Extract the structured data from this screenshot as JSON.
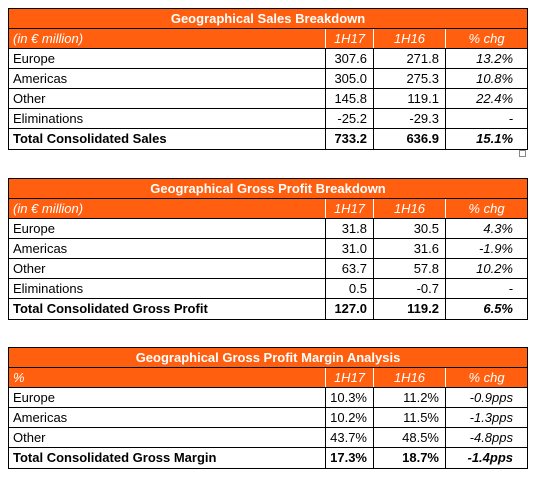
{
  "tables": [
    {
      "title": "Geographical Sales Breakdown",
      "header": [
        "(in € million)",
        "1H17",
        "1H16",
        "% chg"
      ],
      "rows": [
        [
          "Europe",
          "307.6",
          "271.8",
          "13.2%"
        ],
        [
          "Americas",
          "305.0",
          "275.3",
          "10.8%"
        ],
        [
          "Other",
          "145.8",
          "119.1",
          "22.4%"
        ],
        [
          "Eliminations",
          "-25.2",
          "-29.3",
          "-"
        ]
      ],
      "total": [
        "Total Consolidated Sales",
        "733.2",
        "636.9",
        "15.1%"
      ]
    },
    {
      "title": "Geographical Gross Profit Breakdown",
      "header": [
        "(in € million)",
        "1H17",
        "1H16",
        "% chg"
      ],
      "rows": [
        [
          "Europe",
          "31.8",
          "30.5",
          "4.3%"
        ],
        [
          "Americas",
          "31.0",
          "31.6",
          "-1.9%"
        ],
        [
          "Other",
          "63.7",
          "57.8",
          "10.2%"
        ],
        [
          "Eliminations",
          "0.5",
          "-0.7",
          "-"
        ]
      ],
      "total": [
        "Total Consolidated Gross Profit",
        "127.0",
        "119.2",
        "6.5%"
      ]
    },
    {
      "title": "Geographical Gross Profit Margin Analysis",
      "header": [
        "%",
        "1H17",
        "1H16",
        "% chg"
      ],
      "rows": [
        [
          "Europe",
          "10.3%",
          "11.2%",
          "-0.9pps"
        ],
        [
          "Americas",
          "10.2%",
          "11.5%",
          "-1.3pps"
        ],
        [
          "Other",
          "43.7%",
          "48.5%",
          "-4.8pps"
        ]
      ],
      "total": [
        "Total Consolidated Gross Margin",
        "17.3%",
        "18.7%",
        "-1.4pps"
      ]
    }
  ]
}
